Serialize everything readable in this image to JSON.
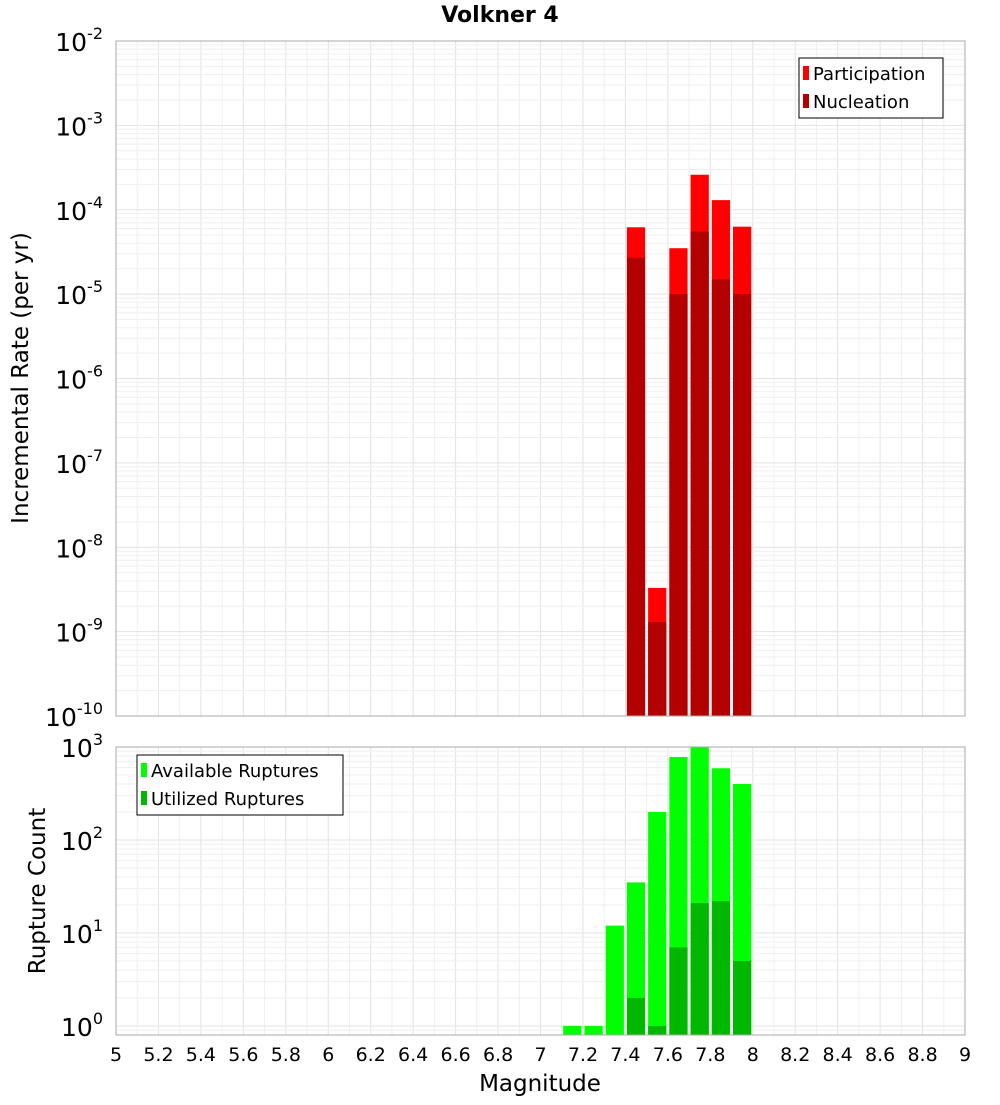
{
  "chart_data": {
    "title": "Volkner 4",
    "xlabel": "Magnitude",
    "xlim": [
      5,
      9
    ],
    "xticks": [
      "5",
      "5.2",
      "5.4",
      "5.6",
      "5.8",
      "6",
      "6.2",
      "6.4",
      "6.6",
      "6.8",
      "7",
      "7.2",
      "7.4",
      "7.6",
      "7.8",
      "8",
      "8.2",
      "8.4",
      "8.6",
      "8.8",
      "9"
    ],
    "bin_width": 0.1,
    "panels": [
      {
        "type": "bar",
        "ylabel": "Incremental Rate (per yr)",
        "yscale": "log",
        "ylim": [
          1e-10,
          0.01
        ],
        "ytick_exponents": [
          "-10",
          "-9",
          "-8",
          "-7",
          "-6",
          "-5",
          "-4",
          "-3",
          "-2"
        ],
        "ytick_base": "10",
        "grid": true,
        "legend_position": "top-right",
        "series": [
          {
            "name": "Participation",
            "color": "#ff0000",
            "x": [
              7.45,
              7.55,
              7.65,
              7.75,
              7.85,
              7.95
            ],
            "values": [
              6.2e-05,
              3.3e-09,
              3.5e-05,
              0.00026,
              0.00013,
              6.3e-05
            ]
          },
          {
            "name": "Nucleation",
            "color": "#b30000",
            "x": [
              7.45,
              7.55,
              7.65,
              7.75,
              7.85,
              7.95
            ],
            "values": [
              2.7e-05,
              1.3e-09,
              1e-05,
              5.5e-05,
              1.5e-05,
              1e-05
            ]
          }
        ]
      },
      {
        "type": "bar",
        "ylabel": "Rupture Count",
        "yscale": "log",
        "ylim": [
          0.8,
          1000
        ],
        "ytick_exponents": [
          "0",
          "1",
          "2",
          "3"
        ],
        "ytick_base": "10",
        "grid": true,
        "legend_position": "top-left",
        "series": [
          {
            "name": "Available Ruptures",
            "color": "#00ff00",
            "x": [
              7.15,
              7.25,
              7.35,
              7.45,
              7.55,
              7.65,
              7.75,
              7.85,
              7.95
            ],
            "values": [
              1,
              1,
              12,
              35,
              200,
              780,
              1000,
              590,
              400
            ]
          },
          {
            "name": "Utilized Ruptures",
            "color": "#00b800",
            "x": [
              7.45,
              7.55,
              7.65,
              7.75,
              7.85,
              7.95
            ],
            "values": [
              2,
              1,
              7,
              21,
              22,
              5
            ]
          }
        ]
      }
    ]
  }
}
